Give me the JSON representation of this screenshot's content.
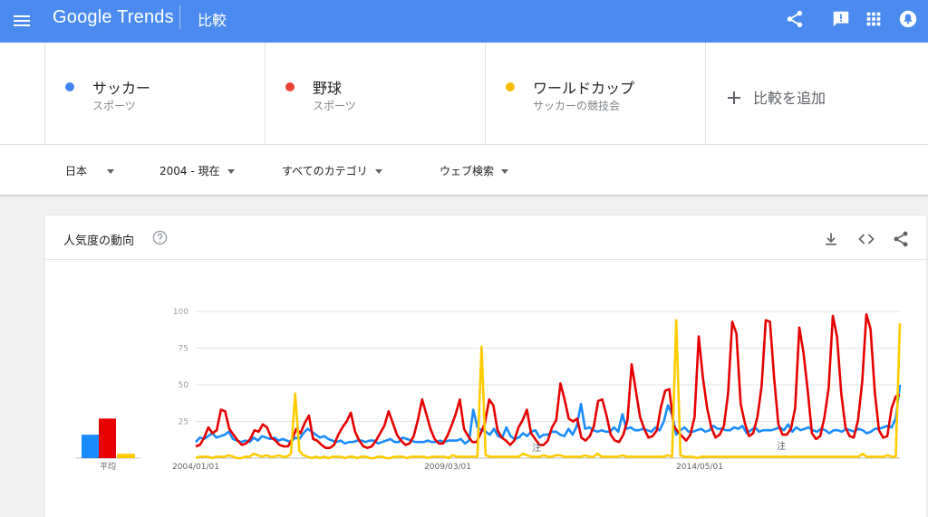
{
  "header": {
    "logo_text": "Google Trends",
    "page_name": "比較",
    "brand_color": "#4b8bef",
    "icons": [
      "menu-icon",
      "share-icon",
      "feedback-icon",
      "apps-icon",
      "notifications-icon"
    ]
  },
  "compare": {
    "terms": [
      {
        "title": "サッカー",
        "subtitle": "スポーツ",
        "color": "#4285f4"
      },
      {
        "title": "野球",
        "subtitle": "スポーツ",
        "color": "#ea4335"
      },
      {
        "title": "ワールドカップ",
        "subtitle": "サッカーの競技会",
        "color": "#fbbc04"
      }
    ],
    "add_label": "比較を追加"
  },
  "filters": {
    "region": "日本",
    "time": "2004 - 現在",
    "category": "すべてのカテゴリ",
    "search_type": "ウェブ検索"
  },
  "card": {
    "title": "人気度の動向",
    "icons": [
      "help-icon",
      "download-icon",
      "embed-icon",
      "share-icon"
    ]
  },
  "chart_data": {
    "type": "line",
    "y_ticks": [
      "100",
      "75",
      "50",
      "25"
    ],
    "ylim": [
      0,
      100
    ],
    "x_tick_labels": [
      "2004/01/01",
      "2009/03/01",
      "2014/05/01"
    ],
    "notes": [
      "注",
      "注"
    ],
    "average_label": "平均",
    "averages": [
      {
        "name": "サッカー",
        "value": 16
      },
      {
        "name": "野球",
        "value": 27
      },
      {
        "name": "ワールドカップ",
        "value": 3
      }
    ],
    "colors": [
      "#1a8cff",
      "#e60000",
      "#ffcc00"
    ],
    "series": [
      {
        "name": "サッカー",
        "values": [
          11,
          14,
          13,
          15,
          17,
          14,
          15,
          16,
          18,
          13,
          12,
          11,
          12,
          11,
          14,
          12,
          15,
          14,
          13,
          14,
          12,
          13,
          12,
          11,
          14,
          13,
          17,
          20,
          18,
          16,
          14,
          15,
          13,
          12,
          11,
          12,
          10,
          11,
          11,
          12,
          12,
          11,
          12,
          12,
          10,
          11,
          12,
          13,
          11,
          11,
          14,
          13,
          12,
          11,
          11,
          11,
          12,
          11,
          11,
          12,
          11,
          12,
          12,
          12,
          13,
          10,
          12,
          33,
          21,
          19,
          18,
          16,
          20,
          15,
          14,
          21,
          15,
          13,
          14,
          17,
          15,
          18,
          19,
          14,
          16,
          16,
          18,
          18,
          16,
          15,
          20,
          16,
          22,
          37,
          20,
          21,
          19,
          18,
          19,
          18,
          18,
          21,
          18,
          30,
          20,
          21,
          19,
          19,
          20,
          19,
          18,
          21,
          19,
          25,
          36,
          30,
          16,
          19,
          21,
          18,
          18,
          19,
          20,
          18,
          19,
          22,
          20,
          20,
          19,
          19,
          21,
          20,
          22,
          17,
          19,
          21,
          18,
          19,
          19,
          19,
          20,
          21,
          19,
          23,
          18,
          21,
          19,
          20,
          21,
          19,
          18,
          20,
          19,
          17,
          19,
          19,
          18,
          20,
          19,
          18,
          20,
          19,
          17,
          18,
          20,
          20,
          21,
          22,
          21,
          27,
          50
        ]
      },
      {
        "name": "野球",
        "values": [
          8,
          9,
          14,
          21,
          17,
          19,
          33,
          32,
          20,
          16,
          12,
          9,
          10,
          13,
          19,
          18,
          23,
          21,
          14,
          12,
          9,
          8,
          8,
          13,
          20,
          17,
          24,
          29,
          13,
          12,
          9,
          7,
          7,
          9,
          16,
          21,
          25,
          31,
          18,
          12,
          8,
          7,
          8,
          12,
          17,
          22,
          32,
          24,
          16,
          12,
          9,
          10,
          15,
          26,
          40,
          30,
          20,
          13,
          10,
          10,
          15,
          22,
          30,
          40,
          20,
          15,
          11,
          11,
          17,
          24,
          40,
          36,
          19,
          14,
          12,
          9,
          12,
          21,
          26,
          33,
          17,
          13,
          9,
          9,
          12,
          21,
          26,
          51,
          40,
          27,
          25,
          27,
          14,
          12,
          15,
          22,
          39,
          40,
          29,
          16,
          12,
          11,
          16,
          26,
          64,
          46,
          28,
          20,
          14,
          15,
          19,
          35,
          46,
          47,
          22,
          18,
          15,
          12,
          16,
          28,
          83,
          55,
          34,
          21,
          14,
          16,
          22,
          44,
          93,
          85,
          37,
          24,
          15,
          17,
          28,
          49,
          94,
          93,
          54,
          23,
          16,
          16,
          20,
          34,
          89,
          72,
          46,
          17,
          13,
          15,
          28,
          48,
          97,
          83,
          44,
          21,
          15,
          14,
          26,
          52,
          98,
          88,
          45,
          19,
          14,
          15,
          34,
          42,
          43
        ]
      },
      {
        "name": "ワールドカップ",
        "values": [
          0,
          1,
          1,
          1,
          0,
          1,
          1,
          1,
          2,
          1,
          0,
          0,
          1,
          1,
          3,
          2,
          1,
          2,
          1,
          1,
          2,
          1,
          1,
          3,
          44,
          5,
          2,
          1,
          0,
          1,
          0,
          1,
          0,
          1,
          1,
          1,
          0,
          1,
          1,
          0,
          1,
          1,
          0,
          0,
          1,
          1,
          0,
          0,
          1,
          1,
          1,
          0,
          1,
          1,
          1,
          1,
          0,
          1,
          1,
          1,
          1,
          0,
          2,
          1,
          1,
          1,
          1,
          1,
          1,
          76,
          2,
          1,
          1,
          1,
          1,
          1,
          1,
          1,
          1,
          3,
          2,
          1,
          1,
          1,
          2,
          1,
          1,
          2,
          2,
          1,
          1,
          1,
          1,
          1,
          2,
          1,
          1,
          3,
          1,
          1,
          1,
          1,
          1,
          2,
          1,
          1,
          1,
          1,
          1,
          1,
          1,
          1,
          1,
          1,
          2,
          1,
          94,
          2,
          1,
          1,
          1,
          0,
          1,
          1,
          1,
          1,
          1,
          1,
          1,
          1,
          1,
          1,
          1,
          1,
          1,
          1,
          1,
          1,
          1,
          1,
          1,
          1,
          1,
          1,
          1,
          1,
          1,
          1,
          1,
          1,
          1,
          1,
          1,
          1,
          1,
          1,
          1,
          1,
          1,
          1,
          1,
          3,
          1,
          1,
          1,
          1,
          1,
          2,
          1,
          1,
          92
        ]
      }
    ]
  }
}
